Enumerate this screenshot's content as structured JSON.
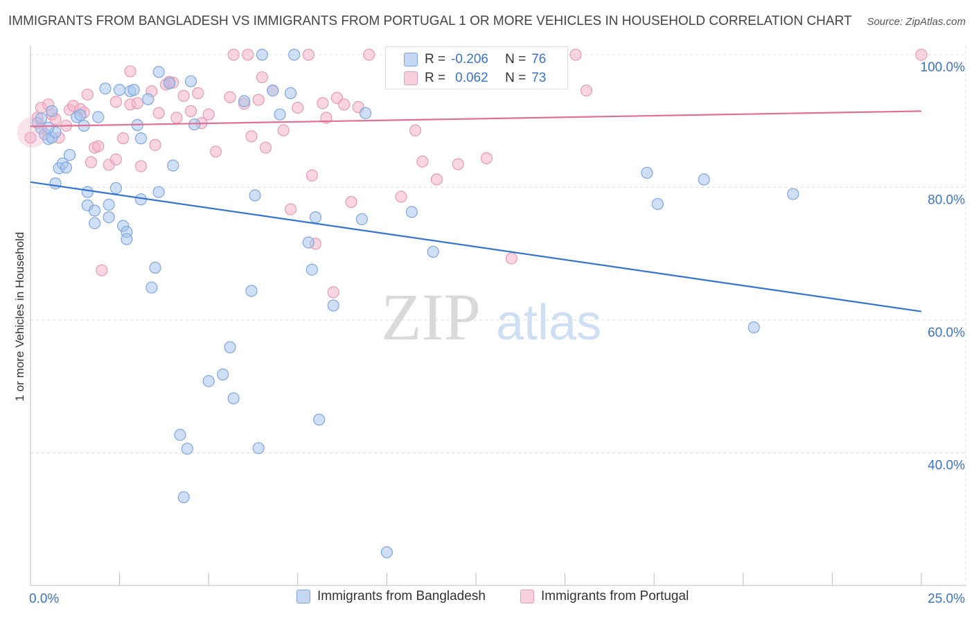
{
  "title": "IMMIGRANTS FROM BANGLADESH VS IMMIGRANTS FROM PORTUGAL 1 OR MORE VEHICLES IN HOUSEHOLD CORRELATION CHART",
  "source": "Source: ZipAtlas.com",
  "watermark": {
    "zip": "ZIP",
    "atlas": "atlas"
  },
  "stats": [
    {
      "r_label": "R =",
      "r_value": "-0.206",
      "n_label": "N =",
      "n_value": "76",
      "color": "#a7c4ec"
    },
    {
      "r_label": "R =",
      "r_value": "0.062",
      "n_label": "N =",
      "n_value": "73",
      "color": "#f2b3c8"
    }
  ],
  "colors": {
    "blue_fill": "#a7c4ec",
    "blue_stroke": "#7ea6de",
    "blue_line": "#3474d0",
    "pink_fill": "#f2b3c8",
    "pink_stroke": "#e69ab4",
    "pink_line": "#e26d95",
    "tick_label": "#3b73c9",
    "grid": "#dddddd"
  },
  "chart_data": {
    "type": "scatter",
    "title": "IMMIGRANTS FROM BANGLADESH VS IMMIGRANTS FROM PORTUGAL 1 OR MORE VEHICLES IN HOUSEHOLD CORRELATION CHART",
    "xlabel": "",
    "ylabel": "1 or more Vehicles in Household",
    "xlim": [
      0,
      25
    ],
    "ylim": [
      20,
      100
    ],
    "x_tick_labels": [
      {
        "x": 0,
        "label": "0.0%"
      },
      {
        "x": 25,
        "label": "25.0%"
      }
    ],
    "y_tick_labels": [
      {
        "y": 100,
        "label": "100.0%"
      },
      {
        "y": 80,
        "label": "80.0%"
      },
      {
        "y": 60,
        "label": "60.0%"
      },
      {
        "y": 40,
        "label": "40.0%"
      }
    ],
    "grid": true,
    "legend": "bottom-center",
    "series": [
      {
        "name": "Immigrants from Bangladesh",
        "color": "#a7c4ec",
        "trend": {
          "x": [
            0,
            25
          ],
          "y": [
            80.8,
            61.3
          ]
        },
        "points": [
          [
            0.2,
            89.7
          ],
          [
            0.3,
            88.9
          ],
          [
            0.4,
            88.0
          ],
          [
            0.5,
            87.3
          ],
          [
            0.6,
            87.5
          ],
          [
            0.6,
            91.5
          ],
          [
            0.7,
            88.3
          ],
          [
            0.7,
            80.6
          ],
          [
            0.8,
            82.9
          ],
          [
            0.9,
            83.6
          ],
          [
            1.0,
            83.0
          ],
          [
            1.1,
            84.9
          ],
          [
            1.3,
            90.6
          ],
          [
            1.4,
            90.9
          ],
          [
            1.5,
            89.3
          ],
          [
            1.6,
            77.3
          ],
          [
            1.6,
            79.3
          ],
          [
            1.8,
            76.5
          ],
          [
            1.8,
            74.6
          ],
          [
            1.9,
            90.6
          ],
          [
            2.1,
            94.9
          ],
          [
            2.2,
            75.5
          ],
          [
            2.2,
            77.4
          ],
          [
            2.4,
            79.9
          ],
          [
            2.5,
            94.7
          ],
          [
            2.6,
            74.2
          ],
          [
            2.7,
            73.3
          ],
          [
            2.7,
            72.2
          ],
          [
            2.8,
            94.5
          ],
          [
            2.9,
            94.7
          ],
          [
            3.0,
            89.4
          ],
          [
            3.1,
            87.4
          ],
          [
            3.1,
            78.2
          ],
          [
            3.3,
            93.3
          ],
          [
            3.4,
            64.9
          ],
          [
            3.5,
            67.9
          ],
          [
            3.6,
            97.4
          ],
          [
            3.6,
            79.3
          ],
          [
            3.9,
            95.7
          ],
          [
            4.0,
            83.3
          ],
          [
            4.2,
            42.7
          ],
          [
            4.3,
            33.3
          ],
          [
            4.4,
            40.6
          ],
          [
            4.5,
            96.0
          ],
          [
            4.6,
            89.5
          ],
          [
            5.0,
            50.8
          ],
          [
            5.4,
            51.8
          ],
          [
            5.6,
            55.9
          ],
          [
            5.7,
            48.2
          ],
          [
            6.0,
            93.0
          ],
          [
            6.2,
            64.4
          ],
          [
            6.3,
            78.8
          ],
          [
            6.4,
            40.7
          ],
          [
            6.5,
            100.0
          ],
          [
            6.8,
            94.6
          ],
          [
            7.0,
            91.0
          ],
          [
            7.3,
            94.2
          ],
          [
            7.4,
            100.0
          ],
          [
            7.8,
            71.7
          ],
          [
            7.9,
            67.6
          ],
          [
            8.0,
            75.5
          ],
          [
            8.1,
            45.0
          ],
          [
            8.5,
            62.2
          ],
          [
            9.3,
            75.2
          ],
          [
            9.4,
            91.2
          ],
          [
            10.0,
            25.0
          ],
          [
            10.7,
            76.3
          ],
          [
            11.3,
            70.3
          ],
          [
            11.8,
            100.0
          ],
          [
            17.3,
            82.2
          ],
          [
            17.6,
            77.5
          ],
          [
            18.9,
            81.2
          ],
          [
            20.3,
            58.9
          ],
          [
            21.4,
            79.0
          ],
          [
            0.5,
            89.0
          ],
          [
            0.3,
            90.4
          ]
        ]
      },
      {
        "name": "Immigrants from Portugal",
        "color": "#f2b3c8",
        "trend": {
          "x": [
            0,
            25
          ],
          "y": [
            89.2,
            91.5
          ]
        },
        "points": [
          [
            0.0,
            87.5
          ],
          [
            0.2,
            90.5
          ],
          [
            0.3,
            92.0
          ],
          [
            0.5,
            92.5
          ],
          [
            0.6,
            91.0
          ],
          [
            0.7,
            90.3
          ],
          [
            0.8,
            87.5
          ],
          [
            1.0,
            89.3
          ],
          [
            1.1,
            91.7
          ],
          [
            1.2,
            92.3
          ],
          [
            1.4,
            91.8
          ],
          [
            1.5,
            91.3
          ],
          [
            1.6,
            94.0
          ],
          [
            1.7,
            83.8
          ],
          [
            1.8,
            86.0
          ],
          [
            1.9,
            86.2
          ],
          [
            2.0,
            67.5
          ],
          [
            2.2,
            83.4
          ],
          [
            2.4,
            92.9
          ],
          [
            2.4,
            84.2
          ],
          [
            2.6,
            87.4
          ],
          [
            2.8,
            97.5
          ],
          [
            2.8,
            92.5
          ],
          [
            3.0,
            92.7
          ],
          [
            3.1,
            83.2
          ],
          [
            3.4,
            94.5
          ],
          [
            3.5,
            86.4
          ],
          [
            3.6,
            91.2
          ],
          [
            3.8,
            95.5
          ],
          [
            3.9,
            95.9
          ],
          [
            4.0,
            95.8
          ],
          [
            4.1,
            90.5
          ],
          [
            4.3,
            93.8
          ],
          [
            4.5,
            91.5
          ],
          [
            4.7,
            94.2
          ],
          [
            4.8,
            89.7
          ],
          [
            5.0,
            91.0
          ],
          [
            5.2,
            85.4
          ],
          [
            5.6,
            93.6
          ],
          [
            5.7,
            100.0
          ],
          [
            6.0,
            92.6
          ],
          [
            6.1,
            100.0
          ],
          [
            6.2,
            87.7
          ],
          [
            6.4,
            93.2
          ],
          [
            6.5,
            96.6
          ],
          [
            6.6,
            86.0
          ],
          [
            6.8,
            94.6
          ],
          [
            7.1,
            88.6
          ],
          [
            7.3,
            76.7
          ],
          [
            7.5,
            92.0
          ],
          [
            7.8,
            100.0
          ],
          [
            7.9,
            81.8
          ],
          [
            8.0,
            71.5
          ],
          [
            8.2,
            92.7
          ],
          [
            8.3,
            90.5
          ],
          [
            8.5,
            64.2
          ],
          [
            8.6,
            93.5
          ],
          [
            8.8,
            92.5
          ],
          [
            9.0,
            77.8
          ],
          [
            9.2,
            92.1
          ],
          [
            9.5,
            100.0
          ],
          [
            10.4,
            78.6
          ],
          [
            10.8,
            88.6
          ],
          [
            11.0,
            83.9
          ],
          [
            11.4,
            81.2
          ],
          [
            11.7,
            100.0
          ],
          [
            12.0,
            83.5
          ],
          [
            12.8,
            84.4
          ],
          [
            13.5,
            69.3
          ],
          [
            13.3,
            100.0
          ],
          [
            15.3,
            100.0
          ],
          [
            15.6,
            94.6
          ],
          [
            25.0,
            100.0
          ]
        ]
      }
    ]
  }
}
